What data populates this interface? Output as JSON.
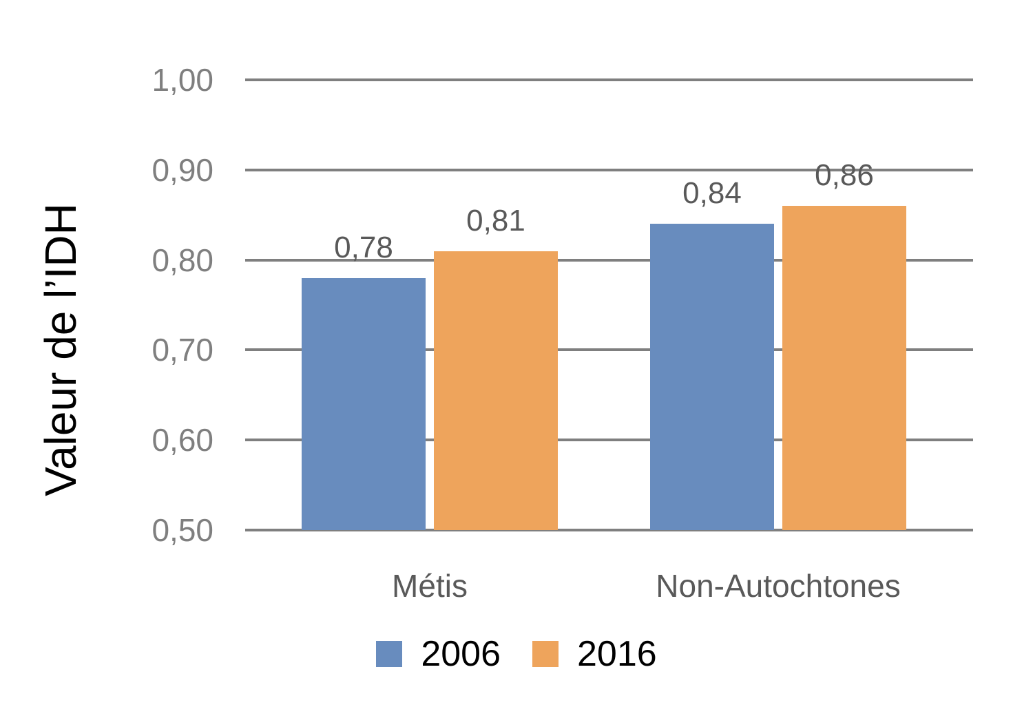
{
  "chart_data": {
    "type": "bar",
    "title": "",
    "ylabel": "Valeur de l’IDH",
    "categories": [
      "Métis",
      "Non-Autochtones"
    ],
    "series": [
      {
        "name": "2006",
        "color": "#688CBE",
        "values": [
          0.78,
          0.84
        ],
        "value_labels": [
          "0,78",
          "0,84"
        ]
      },
      {
        "name": "2016",
        "color": "#EEA45C",
        "values": [
          0.81,
          0.86
        ],
        "value_labels": [
          "0,81",
          "0,86"
        ]
      }
    ],
    "ylim": [
      0.5,
      1.0
    ],
    "ytick_labels": [
      "0,50",
      "0,60",
      "0,70",
      "0,80",
      "0,90",
      "1,00"
    ],
    "grid": true,
    "legend_position": "bottom",
    "colors": {
      "gridline": "#7F7F7F",
      "tick_label": "#7F7F7F",
      "data_label": "#595959",
      "category_label": "#595959",
      "legend_text": "#000000",
      "axis_title": "#000000"
    }
  }
}
